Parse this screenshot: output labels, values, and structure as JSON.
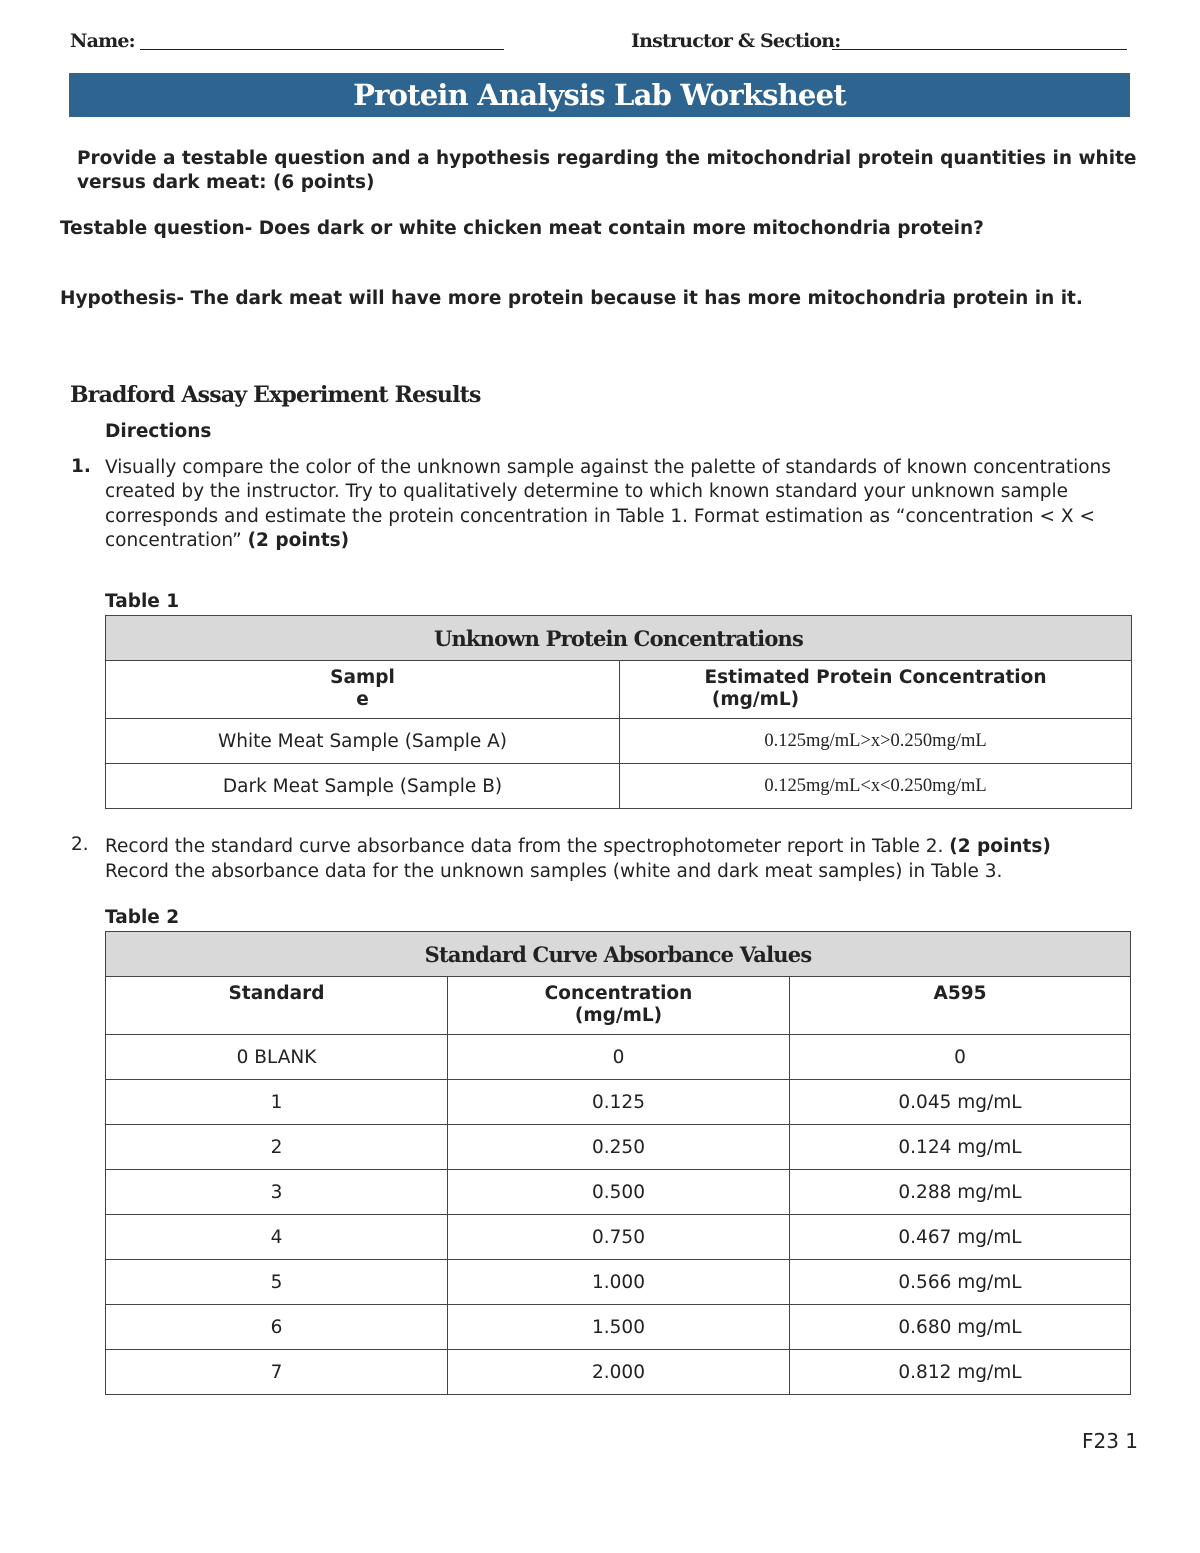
{
  "header": {
    "name_label": "Name:",
    "instructor_label": "Instructor & Section:"
  },
  "title": "Protein Analysis Lab Worksheet",
  "prompt": {
    "text": "Provide a testable question and a hypothesis regarding the mitochondrial protein quantities in white versus dark meat:  (6 points)"
  },
  "answers": {
    "question": "Testable question- Does dark or white chicken meat contain more mitochondria protein?",
    "hypothesis": "Hypothesis-  The dark meat will have more protein because it has more mitochondria protein in it."
  },
  "section": {
    "title": "Bradford Assay Experiment Results",
    "directions_label": "Directions",
    "step1_num": "1.",
    "step1_text": " Visually compare the color of the unknown sample against the palette of standards of known concentrations created by the instructor.  Try to qualitatively determine to which known standard your unknown sample corresponds and estimate the protein concentration in Table 1.  Format estimation as “concentration < X < concentration” ",
    "step1_points": "(2 points)",
    "step2_num": "2.",
    "step2_text": "Record the standard curve absorbance data from the spectrophotometer report in Table 2.  ",
    "step2_points": "(2 points)",
    "step2_text2": "Record the absorbance data for the unknown samples (white and dark meat samples) in Table 3."
  },
  "table1": {
    "label": "Table 1",
    "title": "Unknown Protein Concentrations",
    "col1_a": "Sampl",
    "col1_b": "e",
    "col2_a": "Estimated Protein Concentration",
    "col2_b": "(mg/mL)",
    "rows": [
      {
        "sample": "White Meat Sample (Sample A)",
        "conc": "0.125mg/mL>x>0.250mg/mL"
      },
      {
        "sample": "Dark Meat Sample (Sample B)",
        "conc": "0.125mg/mL<x<0.250mg/mL"
      }
    ]
  },
  "table2": {
    "label": "Table 2",
    "title": "Standard Curve Absorbance Values",
    "col1": "Standard",
    "col2_a": "Concentration",
    "col2_b": "(mg/mL)",
    "col3": "A595",
    "rows": [
      {
        "std": "0 BLANK",
        "conc": "0",
        "abs": "0"
      },
      {
        "std": "1",
        "conc": "0.125",
        "abs": "0.045 mg/mL"
      },
      {
        "std": "2",
        "conc": "0.250",
        "abs": "0.124 mg/mL"
      },
      {
        "std": "3",
        "conc": "0.500",
        "abs": "0.288 mg/mL"
      },
      {
        "std": "4",
        "conc": "0.750",
        "abs": "0.467 mg/mL"
      },
      {
        "std": "5",
        "conc": "1.000",
        "abs": "0.566 mg/mL"
      },
      {
        "std": "6",
        "conc": "1.500",
        "abs": "0.680 mg/mL"
      },
      {
        "std": "7",
        "conc": "2.000",
        "abs": "0.812 mg/mL"
      }
    ]
  },
  "footer": "F23 1"
}
